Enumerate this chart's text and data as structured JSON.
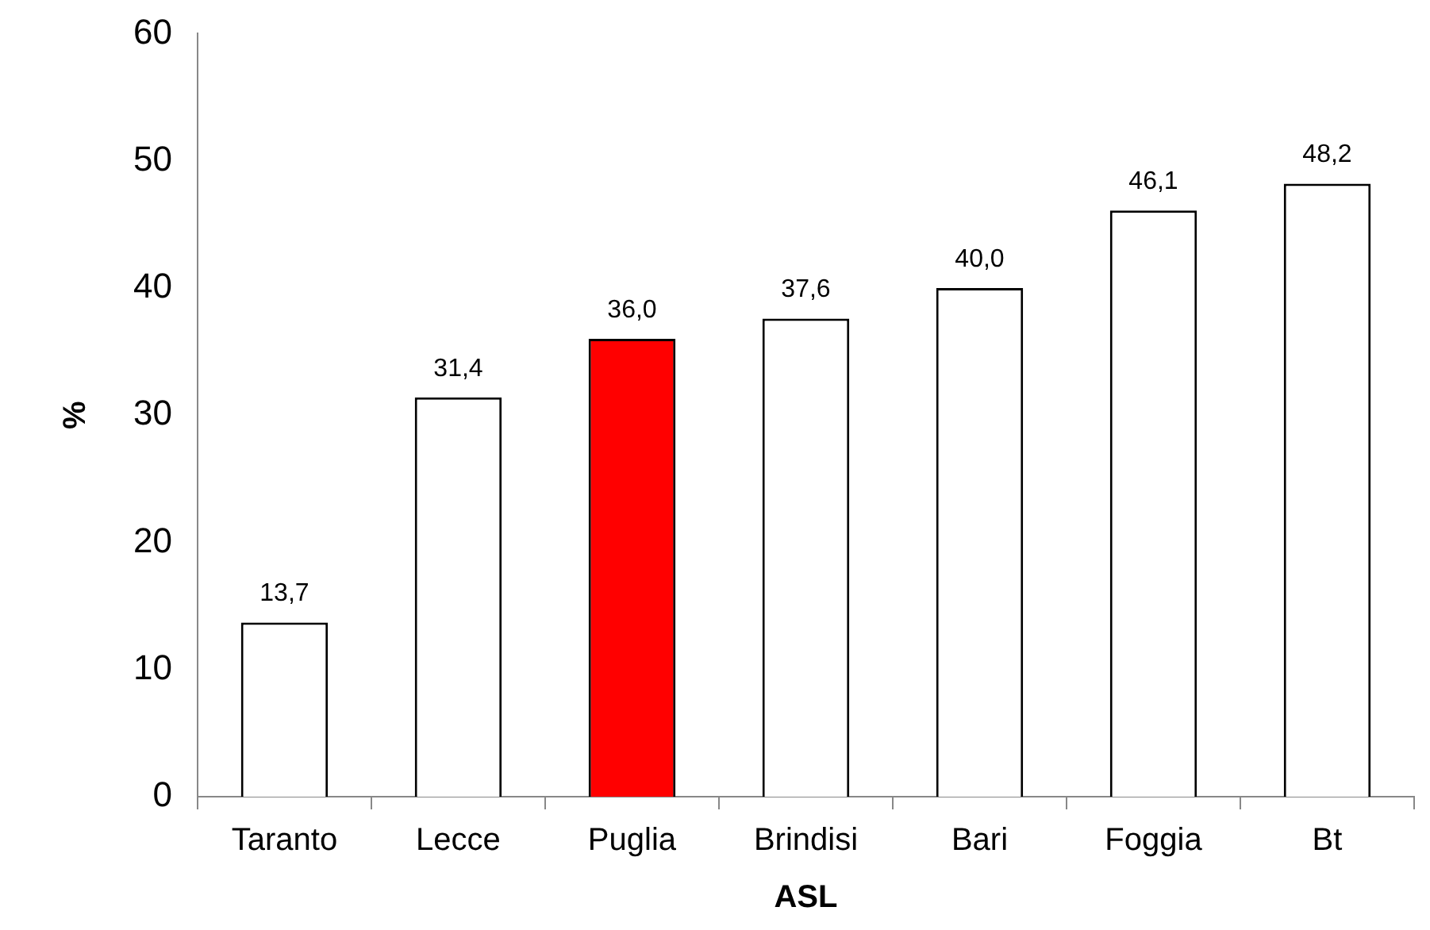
{
  "chart_data": {
    "type": "bar",
    "xlabel": "ASL",
    "ylabel": "%",
    "categories": [
      "Taranto",
      "Lecce",
      "Puglia",
      "Brindisi",
      "Bari",
      "Foggia",
      "Bt"
    ],
    "values": [
      13.7,
      31.4,
      36.0,
      37.6,
      40.0,
      46.1,
      48.2
    ],
    "colors": [
      "#ffffff",
      "#ffffff",
      "#ff0000",
      "#ffffff",
      "#ffffff",
      "#ffffff",
      "#ffffff"
    ],
    "value_labels": [
      "13,7",
      "31,4",
      "36,0",
      "37,6",
      "40,0",
      "46,1",
      "48,2"
    ],
    "ylim": [
      0,
      60
    ],
    "yticks": [
      0,
      10,
      20,
      30,
      40,
      50,
      60
    ],
    "grid": false,
    "legend": false
  }
}
